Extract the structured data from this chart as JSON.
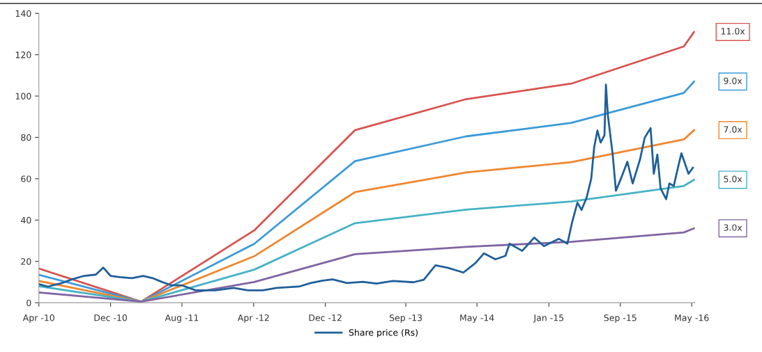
{
  "chart_data": {
    "type": "line",
    "xlim": [
      "2010-04-01",
      "2016-05-12"
    ],
    "xticks": [
      {
        "value": "2010-04-01",
        "label": "Apr -10"
      },
      {
        "value": "2010-12-01",
        "label": "Dec -10"
      },
      {
        "value": "2011-08-01",
        "label": "Aug -11"
      },
      {
        "value": "2012-04-01",
        "label": "Apr -12"
      },
      {
        "value": "2012-12-01",
        "label": "Dec -12"
      },
      {
        "value": "2013-09-01",
        "label": "Sep -13"
      },
      {
        "value": "2014-05-01",
        "label": "May -14"
      },
      {
        "value": "2015-01-01",
        "label": "Jan -15"
      },
      {
        "value": "2015-09-01",
        "label": "Sep -15"
      },
      {
        "value": "2016-05-01",
        "label": "May -16"
      }
    ],
    "ylim": [
      0,
      140
    ],
    "yticks": [
      0,
      20,
      40,
      60,
      80,
      100,
      120,
      140
    ],
    "grid": false,
    "legend": "bottom",
    "marker": "none",
    "line_style": "solid",
    "annotations": [
      "11.0x",
      "9.0x",
      "7.0x",
      "5.0x",
      "3.0x"
    ],
    "series": [
      {
        "color": "#d9534f",
        "x": [
          "2010-04-01",
          "2011-03-15",
          "2012-04-03",
          "2013-03-12",
          "2014-03-25",
          "2015-03-18",
          "2016-04-04",
          "2016-05-09"
        ],
        "values": [
          16.5,
          0.5,
          35,
          83.5,
          98.5,
          106,
          124,
          131
        ]
      },
      {
        "color": "#3a9ad9",
        "x": [
          "2010-04-01",
          "2011-03-15",
          "2012-04-03",
          "2013-03-12",
          "2014-03-25",
          "2015-03-18",
          "2016-04-04",
          "2016-05-09"
        ],
        "values": [
          13.5,
          0.5,
          28.5,
          68.5,
          80.5,
          87,
          101.5,
          107
        ]
      },
      {
        "color": "#f0862e",
        "x": [
          "2010-04-01",
          "2011-03-15",
          "2012-04-03",
          "2013-03-12",
          "2014-03-25",
          "2015-03-18",
          "2016-04-04",
          "2016-05-09"
        ],
        "values": [
          10.5,
          0.5,
          22.5,
          53.5,
          63,
          68,
          79,
          83.5
        ]
      },
      {
        "color": "#45b3c4",
        "x": [
          "2010-04-01",
          "2011-03-15",
          "2012-04-03",
          "2013-03-12",
          "2014-03-25",
          "2015-03-18",
          "2016-04-04",
          "2016-05-09"
        ],
        "values": [
          8,
          0.5,
          16,
          38.5,
          45,
          49,
          56.5,
          59.5
        ]
      },
      {
        "color": "#8064a2",
        "x": [
          "2010-04-01",
          "2011-03-15",
          "2012-04-03",
          "2013-03-12",
          "2014-03-25",
          "2015-03-18",
          "2016-04-04",
          "2016-05-09"
        ],
        "values": [
          5,
          0.5,
          10,
          23.5,
          27,
          29.5,
          34,
          36
        ]
      },
      {
        "name": "Share price (Rs)",
        "color": "#1f5f9a",
        "x": [
          "2010-04-01",
          "2010-05-02",
          "2010-06-18",
          "2010-07-22",
          "2010-09-02",
          "2010-10-12",
          "2010-11-06",
          "2010-12-01",
          "2011-01-02",
          "2011-02-12",
          "2011-03-22",
          "2011-04-23",
          "2011-05-24",
          "2011-06-27",
          "2011-08-01",
          "2011-09-17",
          "2011-11-22",
          "2012-01-24",
          "2012-03-13",
          "2012-05-02",
          "2012-06-18",
          "2012-09-02",
          "2012-10-12",
          "2012-11-22",
          "2012-12-26",
          "2013-02-13",
          "2013-04-07",
          "2013-05-24",
          "2013-07-19",
          "2013-09-27",
          "2013-11-01",
          "2013-12-11",
          "2014-01-21",
          "2014-03-16",
          "2014-04-26",
          "2014-05-25",
          "2014-07-03",
          "2014-08-06",
          "2014-08-20",
          "2014-10-02",
          "2014-11-12",
          "2014-12-15",
          "2015-02-04",
          "2015-03-05",
          "2015-03-21",
          "2015-04-08",
          "2015-04-22",
          "2015-05-09",
          "2015-05-25",
          "2015-06-04",
          "2015-06-15",
          "2015-06-26",
          "2015-07-09",
          "2015-07-14",
          "2015-07-21",
          "2015-08-06",
          "2015-08-17",
          "2015-09-03",
          "2015-09-25",
          "2015-10-13",
          "2015-11-07",
          "2015-11-23",
          "2015-12-13",
          "2015-12-24",
          "2016-01-05",
          "2016-01-16",
          "2016-02-04",
          "2016-02-15",
          "2016-03-01",
          "2016-03-16",
          "2016-03-27",
          "2016-04-20",
          "2016-05-05"
        ],
        "values": [
          9,
          7.8,
          9.5,
          11.3,
          13,
          13.6,
          17,
          13,
          12.4,
          11.9,
          13,
          11.9,
          10.1,
          8.4,
          8.4,
          6,
          6,
          7.2,
          6,
          6,
          7.2,
          7.8,
          9.5,
          10.7,
          11.3,
          9.5,
          10.1,
          9.3,
          10.5,
          9.9,
          11.1,
          18.1,
          16.9,
          14.6,
          19.2,
          23.9,
          21,
          22.7,
          28.6,
          25.1,
          31.5,
          27.4,
          30.9,
          28.6,
          39,
          48.4,
          44.9,
          50.7,
          60,
          75.2,
          83.3,
          77.5,
          81,
          105.5,
          90.3,
          71.7,
          54.2,
          60,
          68.2,
          57.7,
          69.3,
          79.8,
          84.5,
          62.4,
          71.7,
          55.4,
          50.1,
          57.7,
          56.5,
          65.9,
          72.3,
          62.4,
          65.3
        ]
      }
    ]
  }
}
